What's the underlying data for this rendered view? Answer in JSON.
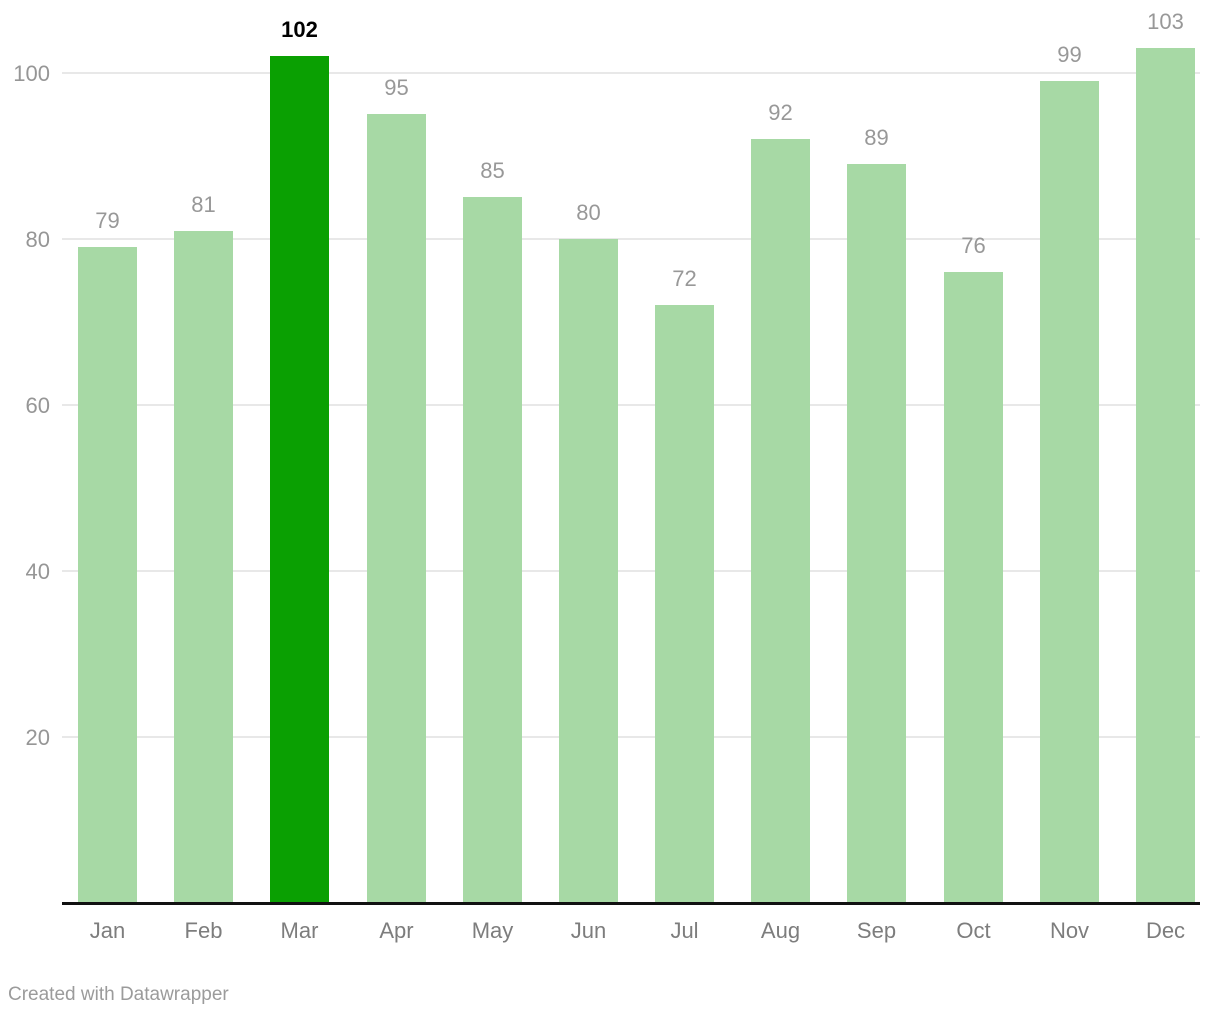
{
  "chart_data": {
    "type": "bar",
    "title": "",
    "xlabel": "",
    "ylabel": "",
    "categories": [
      "Jan",
      "Feb",
      "Mar",
      "Apr",
      "May",
      "Jun",
      "Jul",
      "Aug",
      "Sep",
      "Oct",
      "Nov",
      "Dec"
    ],
    "values": [
      79,
      81,
      102,
      95,
      85,
      80,
      72,
      92,
      89,
      76,
      99,
      103
    ],
    "value_labels": [
      "79",
      "81",
      "102",
      "95",
      "85",
      "80",
      "72",
      "92",
      "89",
      "76",
      "99",
      "103"
    ],
    "highlighted_index": 2,
    "highlighted_category": "Mar",
    "yticks": [
      20,
      40,
      60,
      80,
      100
    ],
    "ytick_labels": [
      "20",
      "40",
      "60",
      "80",
      "100"
    ],
    "ylim": [
      0,
      105
    ],
    "grid": "horizontal-behind-bars",
    "legend": "none",
    "colors": {
      "bar": "#a7d9a5",
      "highlight_bar": "#0aa002",
      "gridline": "#e8e8e8",
      "axis_line": "#111111",
      "ytick_label": "#969696",
      "value_label": "#989898",
      "highlight_value_label": "#000000",
      "category_label": "#7d7d7d"
    }
  },
  "footer": {
    "attribution": "Created with Datawrapper"
  }
}
